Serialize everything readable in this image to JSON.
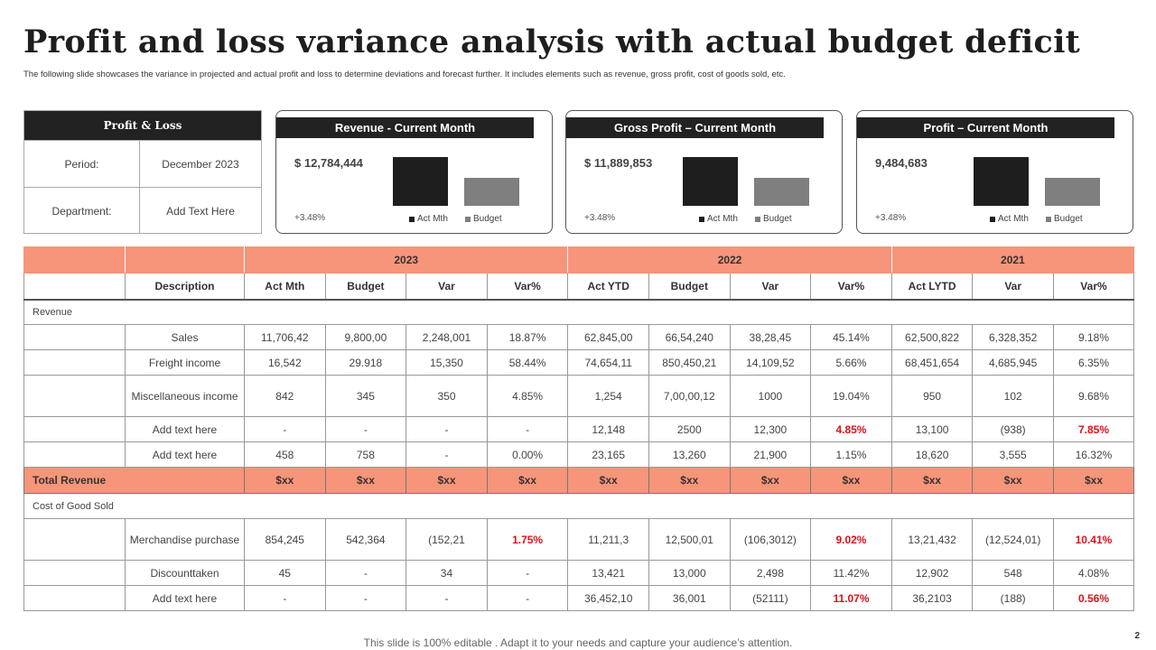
{
  "title": "Profit and loss variance analysis with actual budget deficit",
  "subtitle": "The following slide showcases the variance in projected and actual profit and loss to determine deviations and forecast further. It includes elements such as revenue, gross profit, cost of goods sold, etc.",
  "pl_box": {
    "header": "Profit & Loss",
    "rows": [
      {
        "label": "Period:",
        "value": "December 2023"
      },
      {
        "label": "Department:",
        "value": "Add Text Here"
      }
    ]
  },
  "cards": [
    {
      "title": "Revenue -  Current Month",
      "amount": "$ 12,784,444",
      "change": "+3.48%",
      "legend_act": "Act Mth",
      "legend_budget": "Budget",
      "bar_levels": {
        "act": 1.0,
        "budget": 0.57
      }
    },
    {
      "title": "Gross  Profit – Current Month",
      "amount": "$ 11,889,853",
      "change": "+3.48%",
      "legend_act": "Act Mth",
      "legend_budget": "Budget",
      "bar_levels": {
        "act": 1.0,
        "budget": 0.57
      }
    },
    {
      "title": "Profit – Current Month",
      "amount": "9,484,683",
      "change": "+3.48%",
      "legend_act": "Act Mth",
      "legend_budget": "Budget",
      "bar_levels": {
        "act": 1.0,
        "budget": 0.57
      }
    }
  ],
  "colors": {
    "accent": "#f7957a",
    "act": "#1e1e1e",
    "budget": "#7f7f7f",
    "negative": "#e0101a"
  },
  "table": {
    "years": [
      "2023",
      "2022",
      "2021"
    ],
    "headers": [
      "Description",
      "Act Mth",
      "Budget",
      "Var",
      "Var%",
      "Act YTD",
      "Budget",
      "Var",
      "Var%",
      "Act LYTD",
      "Var",
      "Var%"
    ],
    "sections": [
      {
        "label": "Revenue",
        "rows": [
          {
            "cells": [
              "Sales",
              "11,706,42",
              "9,800,00",
              "2,248,001",
              "18.87%",
              "62,845,00",
              "66,54,240",
              "38,28,45",
              "45.14%",
              "62,500,822",
              "6,328,352",
              "9.18%"
            ],
            "red": []
          },
          {
            "cells": [
              "Freight income",
              "16,542",
              "29.918",
              "15,350",
              "58.44%",
              "74,654,11",
              "850,450,21",
              "14,109,52",
              "5.66%",
              "68,451,654",
              "4,685,945",
              "6.35%"
            ],
            "red": []
          },
          {
            "cells": [
              "Miscellaneous income",
              "842",
              "345",
              "350",
              "4.85%",
              "1,254",
              "7,00,00,12",
              "1000",
              "19.04%",
              "950",
              "102",
              "9.68%"
            ],
            "red": [],
            "tall": true
          },
          {
            "cells": [
              "Add text here",
              "-",
              "-",
              "-",
              "-",
              "12,148",
              "2500",
              "12,300",
              "4.85%",
              "13,100",
              "(938)",
              "7.85%"
            ],
            "red": [
              8,
              11
            ]
          },
          {
            "cells": [
              "Add text here",
              "458",
              "758",
              "-",
              "0.00%",
              "23,165",
              "13,260",
              "21,900",
              "1.15%",
              "18,620",
              "3,555",
              "16.32%"
            ],
            "red": []
          }
        ]
      },
      {
        "total": {
          "label": "Total Revenue",
          "cells": [
            "$xx",
            "$xx",
            "$xx",
            "$xx",
            "$xx",
            "$xx",
            "$xx",
            "$xx",
            "$xx",
            "$xx",
            "$xx"
          ]
        }
      },
      {
        "label": "Cost of Good  Sold",
        "rows": [
          {
            "cells": [
              "Merchandise purchase",
              "854,245",
              "542,364",
              "(152,21",
              "1.75%",
              "11,211,3",
              "12,500,01",
              "(106,3012)",
              "9.02%",
              "13,21,432",
              "(12,524,01)",
              "10.41%"
            ],
            "red": [
              4,
              8,
              11
            ],
            "tall": true
          },
          {
            "cells": [
              "Discounttaken",
              "45",
              "-",
              "34",
              "-",
              "13,421",
              "13,000",
              "2,498",
              "11.42%",
              "12,902",
              "548",
              "4.08%"
            ],
            "red": []
          },
          {
            "cells": [
              "Add text here",
              "-",
              "-",
              "-",
              "-",
              "36,452,10",
              "36,001",
              "(52111)",
              "11.07%",
              "36,2103",
              "(188)",
              "0.56%"
            ],
            "red": [
              8,
              11
            ]
          }
        ]
      }
    ]
  },
  "footer": "This slide is 100% editable . Adapt it to your needs and capture your audience’s attention.",
  "page_number": "2"
}
